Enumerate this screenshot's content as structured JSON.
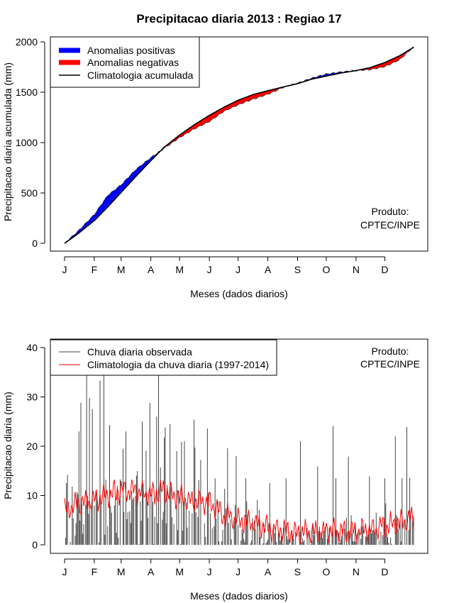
{
  "title": "Precipitacao diaria 2013 : Regiao 17",
  "credit": [
    "Produto:",
    "CPTEC/INPE"
  ],
  "month_labels": [
    "J",
    "F",
    "M",
    "A",
    "M",
    "J",
    "J",
    "A",
    "S",
    "O",
    "N",
    "D"
  ],
  "colors": {
    "positive": "#0000ff",
    "negative": "#ff0000",
    "clim_line": "#000000",
    "obs_bars": "#444444",
    "clim_daily": "#ff0000"
  },
  "chart_data": [
    {
      "type": "area",
      "name": "accumulated",
      "title": "Precipitacao diaria 2013 : Regiao 17",
      "xlabel": "Meses (dados diarios)",
      "ylabel": "Precipitacao diaria acumulada (mm)",
      "xlim": [
        1,
        365
      ],
      "ylim": [
        0,
        2000
      ],
      "yticks": [
        0,
        500,
        1000,
        1500,
        2000
      ],
      "legend": {
        "position": "top-left",
        "entries": [
          "Anomalias positivas",
          "Anomalias negativas",
          "Climatologia acumulada"
        ]
      },
      "x_day": [
        1,
        15,
        32,
        46,
        60,
        75,
        91,
        105,
        121,
        136,
        152,
        167,
        182,
        197,
        213,
        228,
        244,
        259,
        274,
        289,
        305,
        320,
        335,
        350,
        365
      ],
      "climatology": [
        0,
        95,
        225,
        360,
        505,
        660,
        820,
        955,
        1075,
        1175,
        1270,
        1350,
        1420,
        1475,
        1515,
        1550,
        1585,
        1630,
        1660,
        1690,
        1715,
        1745,
        1795,
        1860,
        1945
      ],
      "observed": [
        0,
        120,
        285,
        475,
        580,
        730,
        850,
        945,
        1050,
        1135,
        1210,
        1310,
        1375,
        1430,
        1480,
        1545,
        1590,
        1640,
        1680,
        1700,
        1715,
        1725,
        1755,
        1820,
        1950
      ]
    },
    {
      "type": "bar",
      "name": "daily",
      "xlabel": "Meses (dados diarios)",
      "ylabel": "Precipitacao diaria (mm)",
      "xlim": [
        1,
        365
      ],
      "ylim": [
        0,
        40
      ],
      "yticks": [
        0,
        10,
        20,
        30,
        40
      ],
      "legend": {
        "position": "top-left",
        "entries": [
          "Chuva diaria observada",
          "Climatologia da chuva diaria (1997-2014)"
        ]
      },
      "observed_peaks": [
        {
          "day": 3,
          "value": 12.5
        },
        {
          "day": 4,
          "value": 14.2
        },
        {
          "day": 9,
          "value": 11.8
        },
        {
          "day": 16,
          "value": 23
        },
        {
          "day": 18,
          "value": 28.8
        },
        {
          "day": 24,
          "value": 35
        },
        {
          "day": 27,
          "value": 29.8
        },
        {
          "day": 30,
          "value": 27.5
        },
        {
          "day": 38,
          "value": 33.3
        },
        {
          "day": 42,
          "value": 35
        },
        {
          "day": 48,
          "value": 24.3
        },
        {
          "day": 56,
          "value": 12
        },
        {
          "day": 65,
          "value": 23
        },
        {
          "day": 82,
          "value": 25
        },
        {
          "day": 90,
          "value": 28.8
        },
        {
          "day": 97,
          "value": 26
        },
        {
          "day": 99,
          "value": 35
        },
        {
          "day": 111,
          "value": 24.5
        },
        {
          "day": 118,
          "value": 19
        },
        {
          "day": 126,
          "value": 21
        },
        {
          "day": 136,
          "value": 25.4
        },
        {
          "day": 150,
          "value": 23.6
        },
        {
          "day": 158,
          "value": 13.5
        },
        {
          "day": 171,
          "value": 19.6
        },
        {
          "day": 180,
          "value": 18
        },
        {
          "day": 190,
          "value": 13.5
        },
        {
          "day": 215,
          "value": 12.5
        },
        {
          "day": 232,
          "value": 13.5
        },
        {
          "day": 247,
          "value": 21
        },
        {
          "day": 265,
          "value": 15.9
        },
        {
          "day": 281,
          "value": 24.1
        },
        {
          "day": 284,
          "value": 13.5
        },
        {
          "day": 297,
          "value": 17.9
        },
        {
          "day": 319,
          "value": 13.9
        },
        {
          "day": 335,
          "value": 13.5
        },
        {
          "day": 346,
          "value": 22
        },
        {
          "day": 353,
          "value": 13.5
        },
        {
          "day": 358,
          "value": 23.9
        },
        {
          "day": 361,
          "value": 13.6
        }
      ],
      "climatology_monthly": [
        {
          "day": 1,
          "value": 7
        },
        {
          "day": 15,
          "value": 8.5
        },
        {
          "day": 32,
          "value": 9
        },
        {
          "day": 46,
          "value": 10
        },
        {
          "day": 60,
          "value": 11
        },
        {
          "day": 75,
          "value": 11
        },
        {
          "day": 91,
          "value": 10
        },
        {
          "day": 105,
          "value": 11
        },
        {
          "day": 121,
          "value": 9.5
        },
        {
          "day": 136,
          "value": 9
        },
        {
          "day": 152,
          "value": 8.5
        },
        {
          "day": 167,
          "value": 6
        },
        {
          "day": 182,
          "value": 5
        },
        {
          "day": 197,
          "value": 4.5
        },
        {
          "day": 213,
          "value": 3.5
        },
        {
          "day": 228,
          "value": 3
        },
        {
          "day": 244,
          "value": 2.5
        },
        {
          "day": 259,
          "value": 2.5
        },
        {
          "day": 274,
          "value": 2.8
        },
        {
          "day": 289,
          "value": 2.6
        },
        {
          "day": 305,
          "value": 2.8
        },
        {
          "day": 320,
          "value": 3
        },
        {
          "day": 335,
          "value": 3.8
        },
        {
          "day": 350,
          "value": 4.5
        },
        {
          "day": 365,
          "value": 5.5
        }
      ]
    }
  ]
}
